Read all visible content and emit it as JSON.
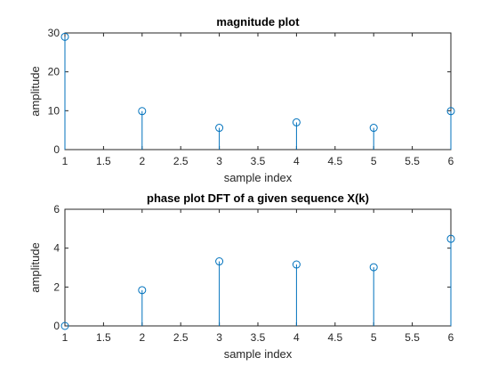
{
  "chart_data": [
    {
      "type": "stem",
      "title": "magnitude plot",
      "xlabel": "sample index",
      "ylabel": "amplitude",
      "x": [
        1,
        2,
        3,
        4,
        5,
        6
      ],
      "values": [
        29.0,
        9.9,
        5.6,
        7.0,
        5.6,
        9.9
      ],
      "xlim": [
        1,
        6
      ],
      "ylim": [
        0,
        30
      ],
      "xticks": [
        "1",
        "1.5",
        "2",
        "2.5",
        "3",
        "3.5",
        "4",
        "4.5",
        "5",
        "5.5",
        "6"
      ],
      "yticks": [
        "0",
        "10",
        "20",
        "30"
      ],
      "grid": false,
      "color": "#0072bd"
    },
    {
      "type": "stem",
      "title": "phase plot DFT of a given sequence X(k)",
      "xlabel": "sample index",
      "ylabel": "amplitude",
      "x": [
        1,
        2,
        3,
        4,
        5,
        6
      ],
      "values": [
        0.0,
        1.84,
        3.32,
        3.16,
        3.02,
        4.48
      ],
      "xlim": [
        1,
        6
      ],
      "ylim": [
        0,
        6
      ],
      "xticks": [
        "1",
        "1.5",
        "2",
        "2.5",
        "3",
        "3.5",
        "4",
        "4.5",
        "5",
        "5.5",
        "6"
      ],
      "yticks": [
        "0",
        "2",
        "4",
        "6"
      ],
      "grid": false,
      "color": "#0072bd"
    }
  ]
}
